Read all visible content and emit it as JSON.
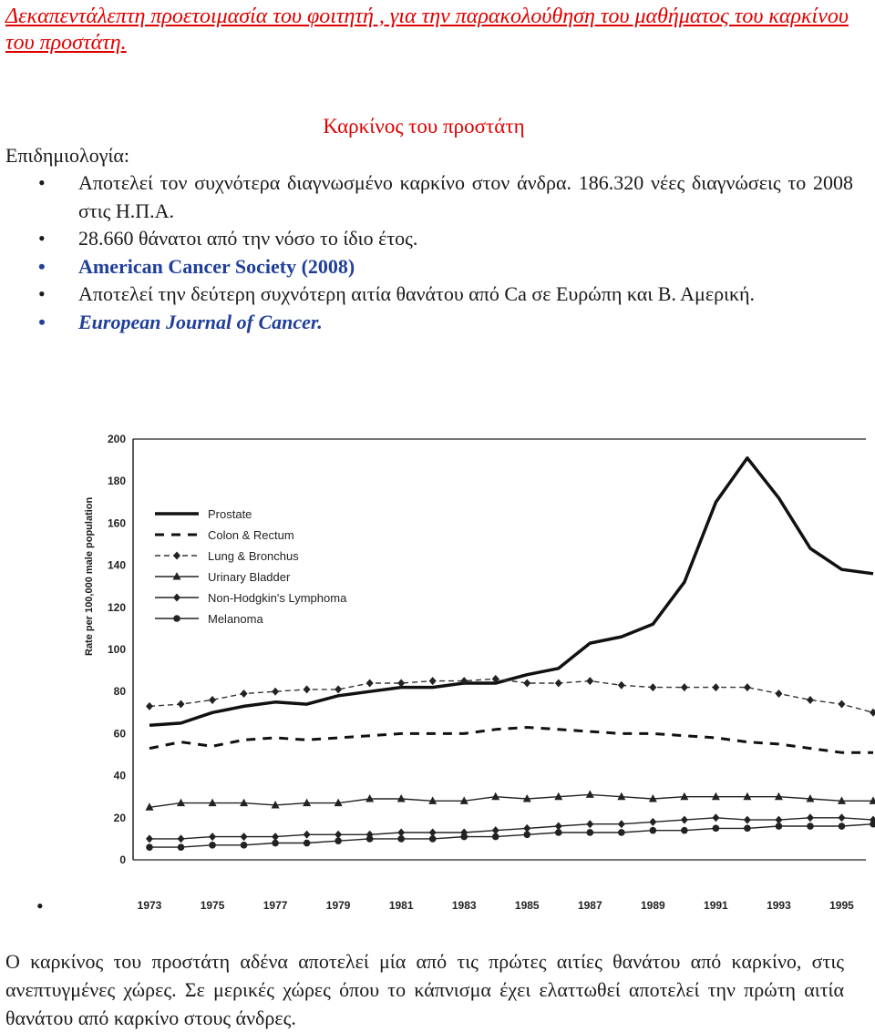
{
  "heading": "Δεκαπεντάλεπτη προετοιμασία του φοιτητή , για την παρακολούθηση του μαθήματος του καρκίνου του προστάτη.",
  "section_title": "Καρκίνος του προστάτη",
  "epidemiology_label": "Επιδημιολογία:",
  "bullets": [
    "Αποτελεί τον συχνότερα διαγνωσμένο καρκίνο στον άνδρα.  186.320 νέες διαγνώσεις το 2008 στις Η.Π.Α.",
    "28.660 θάνατοι από την νόσο το ίδιο έτος.",
    "American Cancer Society (2008)",
    "Αποτελεί την δεύτερη συχνότερη αιτία θανάτου από Ca σε Ευρώπη και Β. Αμερική.",
    "European Journal of Cancer."
  ],
  "bullet_glyph": "•",
  "footer": "Ο καρκίνος του προστάτη αδένα αποτελεί μία από τις πρώτες αιτίες θανάτου από καρκίνο, στις ανεπτυγμένες χώρες. Σε μερικές χώρες όπου το κάπνισμα έχει ελαττωθεί αποτελεί την πρώτη αιτία θανάτου από καρκίνο στους άνδρες.",
  "chart_data": {
    "type": "line",
    "ylabel": "Rate per 100,000 male population",
    "ylim": [
      0,
      200
    ],
    "yticks": [
      0,
      20,
      40,
      60,
      80,
      100,
      120,
      140,
      160,
      180,
      200
    ],
    "xlim": [
      1973,
      1996
    ],
    "xtick_labels": [
      "1973",
      "1975",
      "1977",
      "1979",
      "1981",
      "1983",
      "1985",
      "1987",
      "1989",
      "1991",
      "1993",
      "1995"
    ],
    "x": [
      1973,
      1974,
      1975,
      1976,
      1977,
      1978,
      1979,
      1980,
      1981,
      1982,
      1983,
      1984,
      1985,
      1986,
      1987,
      1988,
      1989,
      1990,
      1991,
      1992,
      1993,
      1994,
      1995,
      1996
    ],
    "legend_position": "top-left",
    "grid": false,
    "series": [
      {
        "name": "Prostate",
        "style": "solid-thick",
        "marker": "none",
        "values": [
          64,
          65,
          70,
          73,
          75,
          74,
          78,
          80,
          82,
          82,
          84,
          84,
          88,
          91,
          103,
          106,
          112,
          132,
          170,
          191,
          172,
          148,
          138,
          136
        ]
      },
      {
        "name": "Colon & Rectum",
        "style": "dashed-thick",
        "marker": "none",
        "values": [
          53,
          56,
          54,
          57,
          58,
          57,
          58,
          59,
          60,
          60,
          60,
          62,
          63,
          62,
          61,
          60,
          60,
          59,
          58,
          56,
          55,
          53,
          51,
          51
        ]
      },
      {
        "name": "Lung & Bronchus",
        "style": "dashed",
        "marker": "diamond",
        "values": [
          73,
          74,
          76,
          79,
          80,
          81,
          81,
          84,
          84,
          85,
          85,
          86,
          84,
          84,
          85,
          83,
          82,
          82,
          82,
          82,
          79,
          76,
          74,
          70
        ]
      },
      {
        "name": "Urinary Bladder",
        "style": "solid",
        "marker": "triangle",
        "values": [
          25,
          27,
          27,
          27,
          26,
          27,
          27,
          29,
          29,
          28,
          28,
          30,
          29,
          30,
          31,
          30,
          29,
          30,
          30,
          30,
          30,
          29,
          28,
          28
        ]
      },
      {
        "name": "Non-Hodgkin's Lymphoma",
        "style": "solid",
        "marker": "diamond",
        "values": [
          10,
          10,
          11,
          11,
          11,
          12,
          12,
          12,
          13,
          13,
          13,
          14,
          15,
          16,
          17,
          17,
          18,
          19,
          20,
          19,
          19,
          20,
          20,
          19
        ]
      },
      {
        "name": "Melanoma",
        "style": "solid",
        "marker": "circle",
        "values": [
          6,
          6,
          7,
          7,
          8,
          8,
          9,
          10,
          10,
          10,
          11,
          11,
          12,
          13,
          13,
          13,
          14,
          14,
          15,
          15,
          16,
          16,
          16,
          17
        ]
      }
    ]
  }
}
